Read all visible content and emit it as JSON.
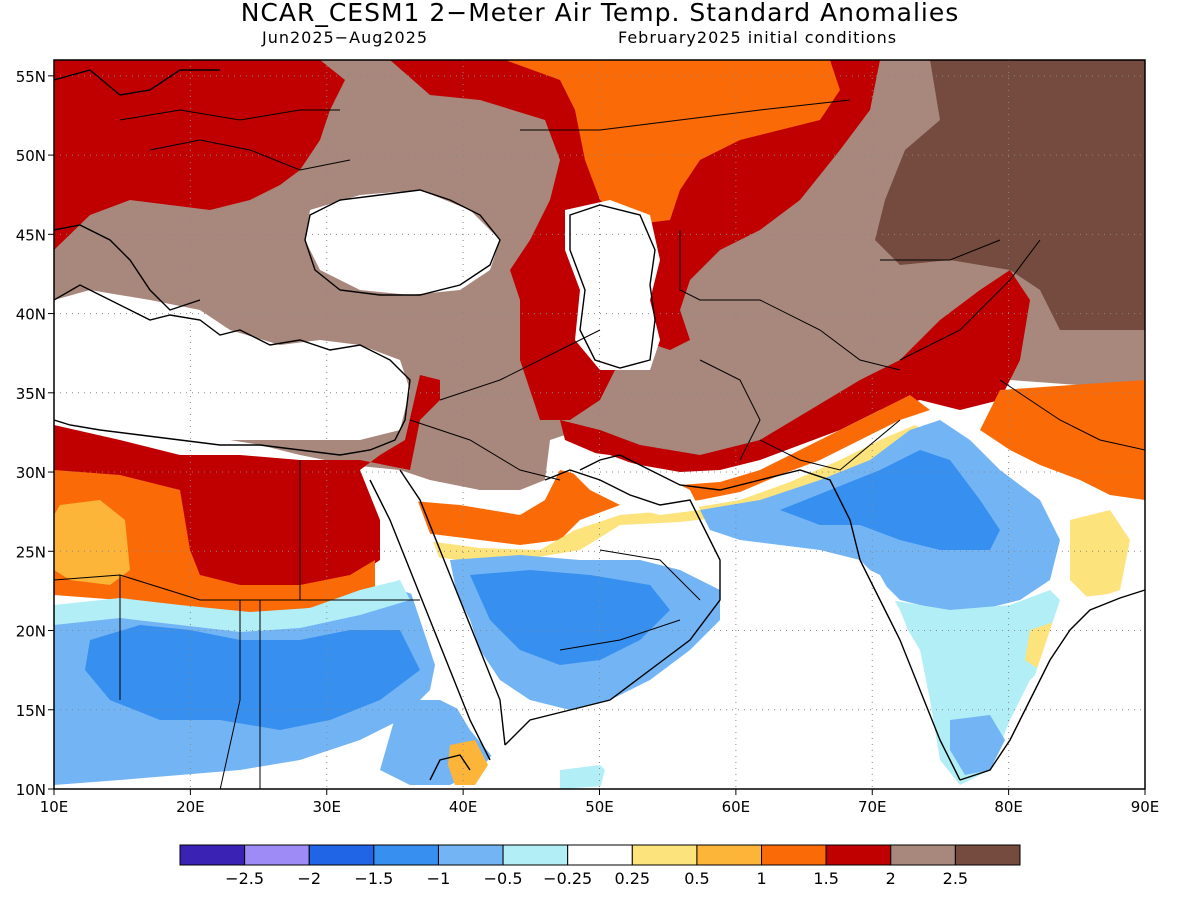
{
  "header": {
    "title": "NCAR_CESM1 2−Meter Air Temp. Standard Anomalies",
    "period": "Jun2025−Aug2025",
    "init": "February2025 initial conditions"
  },
  "map": {
    "lon_range": [
      10,
      90
    ],
    "lat_range": [
      10,
      56
    ],
    "lat_ticks": [
      "55N",
      "50N",
      "45N",
      "40N",
      "35N",
      "30N",
      "25N",
      "20N",
      "15N",
      "10N"
    ],
    "lat_values": [
      55,
      50,
      45,
      40,
      35,
      30,
      25,
      20,
      15,
      10
    ],
    "lon_ticks": [
      "10E",
      "20E",
      "30E",
      "40E",
      "50E",
      "60E",
      "70E",
      "80E",
      "90E"
    ],
    "lon_values": [
      10,
      20,
      30,
      40,
      50,
      60,
      70,
      80,
      90
    ],
    "grid": true
  },
  "colorbar": {
    "colors": [
      "#3a22b4",
      "#9e8bf5",
      "#1f65e6",
      "#378fef",
      "#73b4f5",
      "#b2eef6",
      "#ffffff",
      "#fde37b",
      "#fcb538",
      "#fa6a07",
      "#c00000",
      "#a8877c",
      "#744b3e"
    ],
    "labels": [
      "−2.5",
      "−2",
      "−1.5",
      "−1",
      "−0.5",
      "−0.25",
      "0.25",
      "0.5",
      "1",
      "1.5",
      "2",
      "2.5"
    ]
  },
  "legend_colors": {
    "very_warm": "#744b3e",
    "warm": "#a8877c",
    "hot": "#c00000",
    "orange": "#fa6a07",
    "light_orange": "#fcb538",
    "yellow": "#fde37b",
    "neutral": "#ffffff",
    "pale_blue": "#b2eef6",
    "light_blue": "#73b4f5",
    "mid_blue": "#378fef",
    "blue": "#1f65e6"
  }
}
